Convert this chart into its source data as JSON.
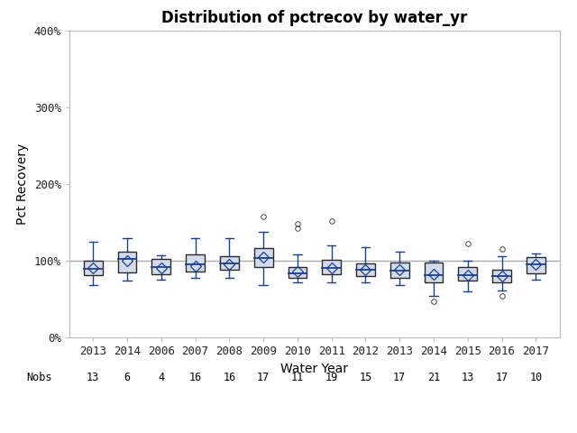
{
  "title": "Distribution of pctrecov by water_yr",
  "xlabel": "Water Year",
  "ylabel": "Pct Recovery",
  "categories": [
    "2013",
    "2014",
    "2006",
    "2007",
    "2008",
    "2009",
    "2010",
    "2011",
    "2012",
    "2013",
    "2014",
    "2015",
    "2016",
    "2017"
  ],
  "nobs": [
    13,
    6,
    4,
    16,
    16,
    17,
    11,
    19,
    15,
    17,
    21,
    13,
    17,
    10
  ],
  "ylim": [
    0,
    400
  ],
  "yticks": [
    0,
    100,
    200,
    300,
    400
  ],
  "ytick_labels": [
    "0%",
    "100%",
    "200%",
    "300%",
    "400%"
  ],
  "ref_line": 100,
  "boxes": [
    {
      "q1": 82,
      "median": 90,
      "q3": 100,
      "whislo": 68,
      "whishi": 125,
      "mean": 91,
      "fliers": []
    },
    {
      "q1": 85,
      "median": 102,
      "q3": 112,
      "whislo": 74,
      "whishi": 130,
      "mean": 100,
      "fliers": []
    },
    {
      "q1": 83,
      "median": 92,
      "q3": 103,
      "whislo": 76,
      "whishi": 107,
      "mean": 91,
      "fliers": []
    },
    {
      "q1": 86,
      "median": 95,
      "q3": 108,
      "whislo": 78,
      "whishi": 130,
      "mean": 93,
      "fliers": []
    },
    {
      "q1": 88,
      "median": 97,
      "q3": 106,
      "whislo": 78,
      "whishi": 130,
      "mean": 96,
      "fliers": []
    },
    {
      "q1": 92,
      "median": 104,
      "q3": 117,
      "whislo": 68,
      "whishi": 138,
      "mean": 105,
      "fliers": [
        158
      ]
    },
    {
      "q1": 78,
      "median": 84,
      "q3": 92,
      "whislo": 72,
      "whishi": 108,
      "mean": 86,
      "fliers": [
        143,
        148
      ]
    },
    {
      "q1": 83,
      "median": 91,
      "q3": 101,
      "whislo": 72,
      "whishi": 120,
      "mean": 91,
      "fliers": [
        152
      ]
    },
    {
      "q1": 80,
      "median": 88,
      "q3": 97,
      "whislo": 72,
      "whishi": 118,
      "mean": 88,
      "fliers": []
    },
    {
      "q1": 78,
      "median": 87,
      "q3": 98,
      "whislo": 68,
      "whishi": 112,
      "mean": 88,
      "fliers": []
    },
    {
      "q1": 72,
      "median": 82,
      "q3": 98,
      "whislo": 55,
      "whishi": 100,
      "mean": 83,
      "fliers": [
        48
      ]
    },
    {
      "q1": 74,
      "median": 82,
      "q3": 92,
      "whislo": 60,
      "whishi": 100,
      "mean": 82,
      "fliers": [
        122
      ]
    },
    {
      "q1": 72,
      "median": 80,
      "q3": 88,
      "whislo": 62,
      "whishi": 106,
      "mean": 80,
      "fliers": [
        55,
        116
      ]
    },
    {
      "q1": 84,
      "median": 95,
      "q3": 105,
      "whislo": 76,
      "whishi": 110,
      "mean": 95,
      "fliers": []
    }
  ],
  "box_facecolor": "#d3daea",
  "box_edgecolor": "#2a2a2a",
  "whisker_color": "#1a4090",
  "median_color": "#1a4090",
  "flier_color": "#444444",
  "mean_marker_color": "#1a4090",
  "ref_line_color": "#aaaaaa",
  "background_color": "#ffffff",
  "title_fontsize": 12,
  "label_fontsize": 10,
  "tick_fontsize": 9,
  "nobs_fontsize": 8.5,
  "box_width": 0.55
}
